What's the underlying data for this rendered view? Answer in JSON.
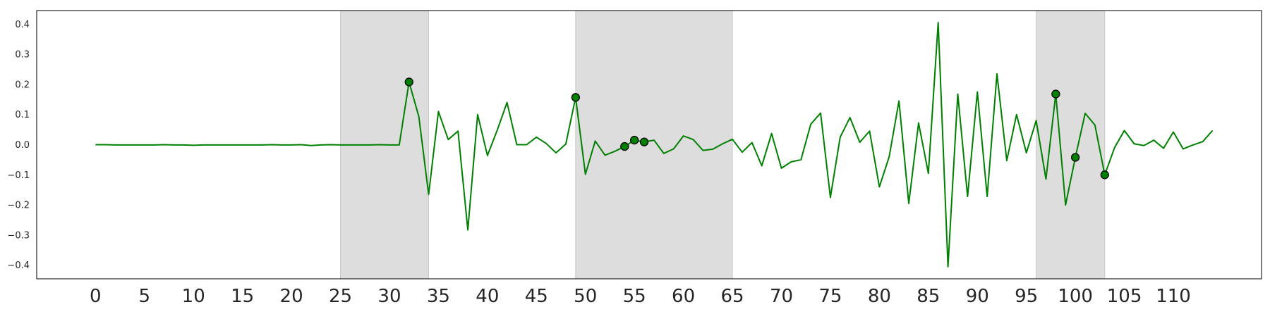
{
  "chart_data": {
    "type": "line",
    "title": "",
    "xlabel": "",
    "ylabel": "",
    "xlim": [
      -6,
      119
    ],
    "ylim": [
      -0.445,
      0.445
    ],
    "x_ticks": [
      0,
      5,
      10,
      15,
      20,
      25,
      30,
      35,
      40,
      45,
      50,
      55,
      60,
      65,
      70,
      75,
      80,
      85,
      90,
      95,
      100,
      105,
      110
    ],
    "y_ticks": [
      -0.4,
      -0.3,
      -0.2,
      -0.1,
      0.0,
      0.1,
      0.2,
      0.3,
      0.4
    ],
    "y_tick_labels": [
      "−0.4",
      "−0.3",
      "−0.2",
      "−0.1",
      "0.0",
      "0.1",
      "0.2",
      "0.3",
      "0.4"
    ],
    "grid": false,
    "line_color": "#008000",
    "marker_color": "#008000",
    "marker_edge_color": "#000000",
    "shaded_color": "#dddddd",
    "shaded_regions": [
      [
        25,
        34
      ],
      [
        49,
        65
      ],
      [
        96,
        103
      ]
    ],
    "series": [
      {
        "x": [
          0,
          1,
          2,
          3,
          4,
          5,
          6,
          7,
          8,
          9,
          10,
          11,
          12,
          13,
          14,
          15,
          16,
          17,
          18,
          19,
          20,
          21,
          22,
          23,
          24,
          25,
          26,
          27,
          28,
          29,
          30,
          31,
          32,
          33,
          34,
          35,
          36,
          37,
          38,
          39,
          40,
          41,
          42,
          43,
          44,
          45,
          46,
          47,
          48,
          49,
          50,
          51,
          52,
          53,
          54,
          55,
          56,
          57,
          58,
          59,
          60,
          61,
          62,
          63,
          64,
          65,
          66,
          67,
          68,
          69,
          70,
          71,
          72,
          73,
          74,
          75,
          76,
          77,
          78,
          79,
          80,
          81,
          82,
          83,
          84,
          85,
          86,
          87,
          88,
          89,
          90,
          91,
          92,
          93,
          94,
          95,
          96,
          97,
          98,
          99,
          100,
          101,
          102,
          103,
          104,
          105,
          106,
          107,
          108,
          109,
          110,
          111,
          112,
          113,
          114
        ],
        "values": [
          0.0,
          0.0,
          -0.001,
          -0.001,
          -0.001,
          -0.001,
          -0.001,
          0.0,
          -0.001,
          -0.001,
          -0.002,
          -0.001,
          -0.001,
          -0.001,
          -0.001,
          -0.001,
          -0.001,
          -0.001,
          0.0,
          -0.001,
          -0.001,
          0.0,
          -0.003,
          -0.001,
          0.0,
          -0.001,
          -0.001,
          -0.001,
          -0.001,
          0.0,
          -0.001,
          -0.001,
          0.208,
          0.093,
          -0.165,
          0.11,
          0.017,
          0.045,
          -0.283,
          0.1,
          -0.036,
          0.048,
          0.14,
          0.0,
          0.0,
          0.025,
          0.004,
          -0.027,
          0.002,
          0.157,
          -0.098,
          0.012,
          -0.035,
          -0.022,
          -0.006,
          0.015,
          0.009,
          0.015,
          -0.029,
          -0.014,
          0.029,
          0.017,
          -0.019,
          -0.015,
          0.003,
          0.018,
          -0.025,
          0.007,
          -0.07,
          0.037,
          -0.078,
          -0.057,
          -0.05,
          0.068,
          0.105,
          -0.175,
          0.025,
          0.09,
          0.008,
          0.045,
          -0.14,
          -0.04,
          0.145,
          -0.195,
          0.072,
          -0.095,
          0.405,
          -0.405,
          0.168,
          -0.172,
          0.175,
          -0.172,
          0.235,
          -0.053,
          0.1,
          -0.027,
          0.08,
          -0.114,
          0.168,
          -0.2,
          -0.042,
          0.104,
          0.065,
          -0.1,
          -0.01,
          0.047,
          0.003,
          -0.003,
          0.015,
          -0.012,
          0.042,
          -0.014,
          -0.001,
          0.01,
          0.047
        ]
      }
    ],
    "highlighted_points": [
      {
        "x": 32,
        "y": 0.208
      },
      {
        "x": 49,
        "y": 0.157
      },
      {
        "x": 54,
        "y": -0.006
      },
      {
        "x": 55,
        "y": 0.015
      },
      {
        "x": 56,
        "y": 0.009
      },
      {
        "x": 98,
        "y": 0.168
      },
      {
        "x": 100,
        "y": -0.042
      },
      {
        "x": 103,
        "y": -0.1
      }
    ]
  }
}
